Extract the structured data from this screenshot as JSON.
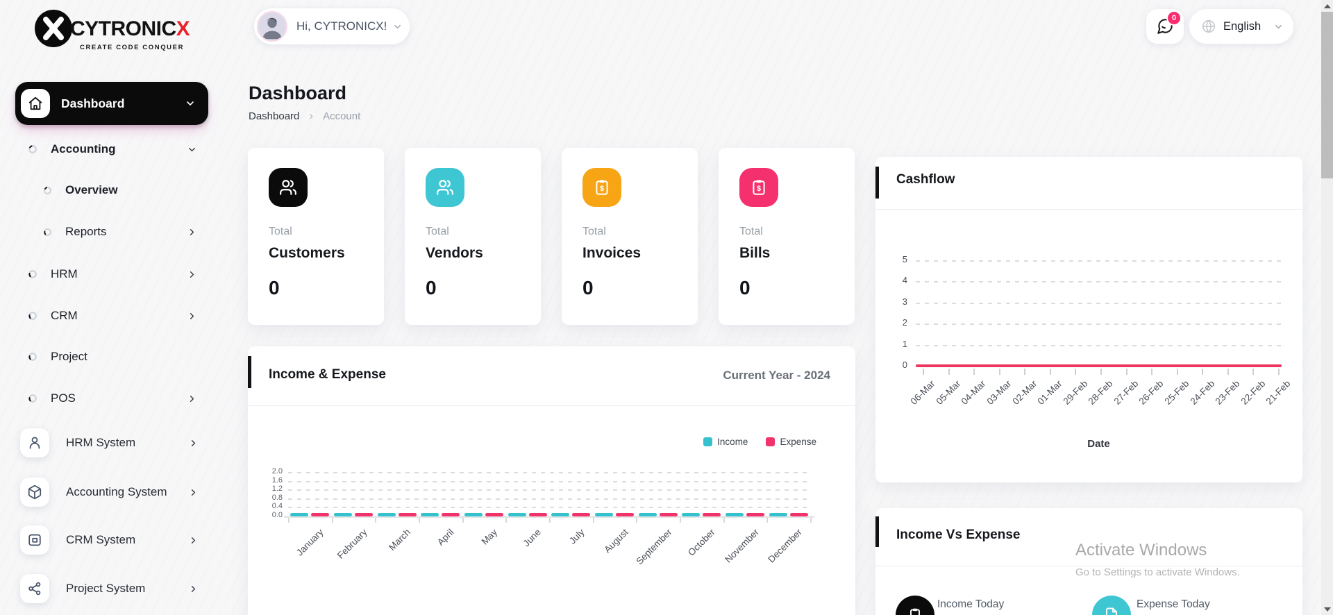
{
  "brand": {
    "name": "CYTRONIC",
    "accent": "X",
    "tagline": "CREATE CODE CONQUER"
  },
  "header": {
    "greeting": "Hi, CYTRONICX!",
    "notification_badge": "0",
    "language": "English"
  },
  "sidebar": {
    "dashboard_label": "Dashboard",
    "menu": [
      {
        "label": "Accounting"
      },
      {
        "label": "Overview"
      },
      {
        "label": "Reports"
      },
      {
        "label": "HRM"
      },
      {
        "label": "CRM"
      },
      {
        "label": "Project"
      },
      {
        "label": "POS"
      }
    ],
    "systems": [
      {
        "label": "HRM System"
      },
      {
        "label": "Accounting System"
      },
      {
        "label": "CRM System"
      },
      {
        "label": "Project System"
      }
    ]
  },
  "page": {
    "title": "Dashboard",
    "breadcrumb": [
      "Dashboard",
      "Account"
    ],
    "breadcrumb_separator": "›"
  },
  "stats": [
    {
      "prefix": "Total",
      "label": "Customers",
      "value": "0",
      "color": "#0B0B0B",
      "icon": "users-icon"
    },
    {
      "prefix": "Total",
      "label": "Vendors",
      "value": "0",
      "color": "#3EC6D3",
      "icon": "users-icon"
    },
    {
      "prefix": "Total",
      "label": "Invoices",
      "value": "0",
      "color": "#F7A415",
      "icon": "clipboard-dollar-icon"
    },
    {
      "prefix": "Total",
      "label": "Bills",
      "value": "0",
      "color": "#F4316E",
      "icon": "clipboard-dollar-icon"
    }
  ],
  "panels": {
    "income_vs_expense": {
      "title": "Income Vs Expense",
      "items": [
        {
          "label": "Income Today",
          "color": "#0B0B0B",
          "icon": "clipboard-icon"
        },
        {
          "label": "Expense Today",
          "color": "#3EC6D3",
          "icon": "receipt-icon"
        }
      ]
    }
  },
  "watermark": {
    "line1": "Activate Windows",
    "line2": "Go to Settings to activate Windows."
  },
  "chart_data": [
    {
      "id": "income-expense",
      "type": "bar",
      "title": "Income & Expense",
      "subtitle": "Current Year - 2024",
      "categories": [
        "January",
        "February",
        "March",
        "April",
        "May",
        "June",
        "July",
        "August",
        "September",
        "October",
        "November",
        "December"
      ],
      "series": [
        {
          "name": "Income",
          "color": "#35C2CE",
          "values": [
            0,
            0,
            0,
            0,
            0,
            0,
            0,
            0,
            0,
            0,
            0,
            0
          ]
        },
        {
          "name": "Expense",
          "color": "#F1336B",
          "values": [
            0,
            0,
            0,
            0,
            0,
            0,
            0,
            0,
            0,
            0,
            0,
            0
          ]
        }
      ],
      "ylim": [
        0,
        2
      ],
      "yticks": [
        0,
        0.4,
        0.8,
        1.2,
        1.6,
        2
      ],
      "ytick_labels": [
        "0.0",
        "0.4",
        "0.8",
        "1.2",
        "1.6",
        "2.0"
      ],
      "grid": "horizontal-dashed",
      "legend_position": "top-right",
      "xlabel": "",
      "ylabel": ""
    },
    {
      "id": "cashflow",
      "type": "line",
      "title": "Cashflow",
      "x": [
        "06-Mar",
        "05-Mar",
        "04-Mar",
        "03-Mar",
        "02-Mar",
        "01-Mar",
        "29-Feb",
        "28-Feb",
        "27-Feb",
        "26-Feb",
        "25-Feb",
        "24-Feb",
        "23-Feb",
        "22-Feb",
        "21-Feb"
      ],
      "series": [
        {
          "name": "Cashflow",
          "color": "#EC3660",
          "values": [
            0,
            0,
            0,
            0,
            0,
            0,
            0,
            0,
            0,
            0,
            0,
            0,
            0,
            0,
            0
          ]
        }
      ],
      "ylim": [
        0,
        5
      ],
      "yticks": [
        0,
        1,
        2,
        3,
        4,
        5
      ],
      "ytick_labels": [
        "0",
        "1",
        "2",
        "3",
        "4",
        "5"
      ],
      "grid": "horizontal-dashed",
      "xlabel": "Date",
      "ylabel": ""
    }
  ]
}
